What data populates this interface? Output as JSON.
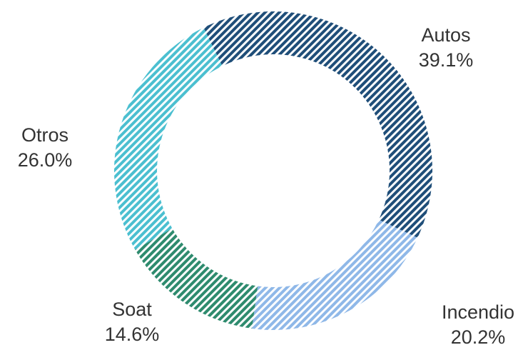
{
  "chart_data": {
    "type": "pie",
    "donut": true,
    "title": "",
    "categories": [
      "Autos",
      "Incendio",
      "Soat",
      "Otros"
    ],
    "values": [
      39.1,
      20.2,
      14.6,
      26.0
    ],
    "labels": [
      "39.1%",
      "20.2%",
      "14.6%",
      "26.0%"
    ],
    "colors": [
      "#1f4e79",
      "#8fb8e8",
      "#2e8b6e",
      "#4bbfd0"
    ],
    "fill_pattern": "diagonal-stripes",
    "start_angle_deg": -26,
    "direction": "clockwise",
    "legend": "none"
  }
}
